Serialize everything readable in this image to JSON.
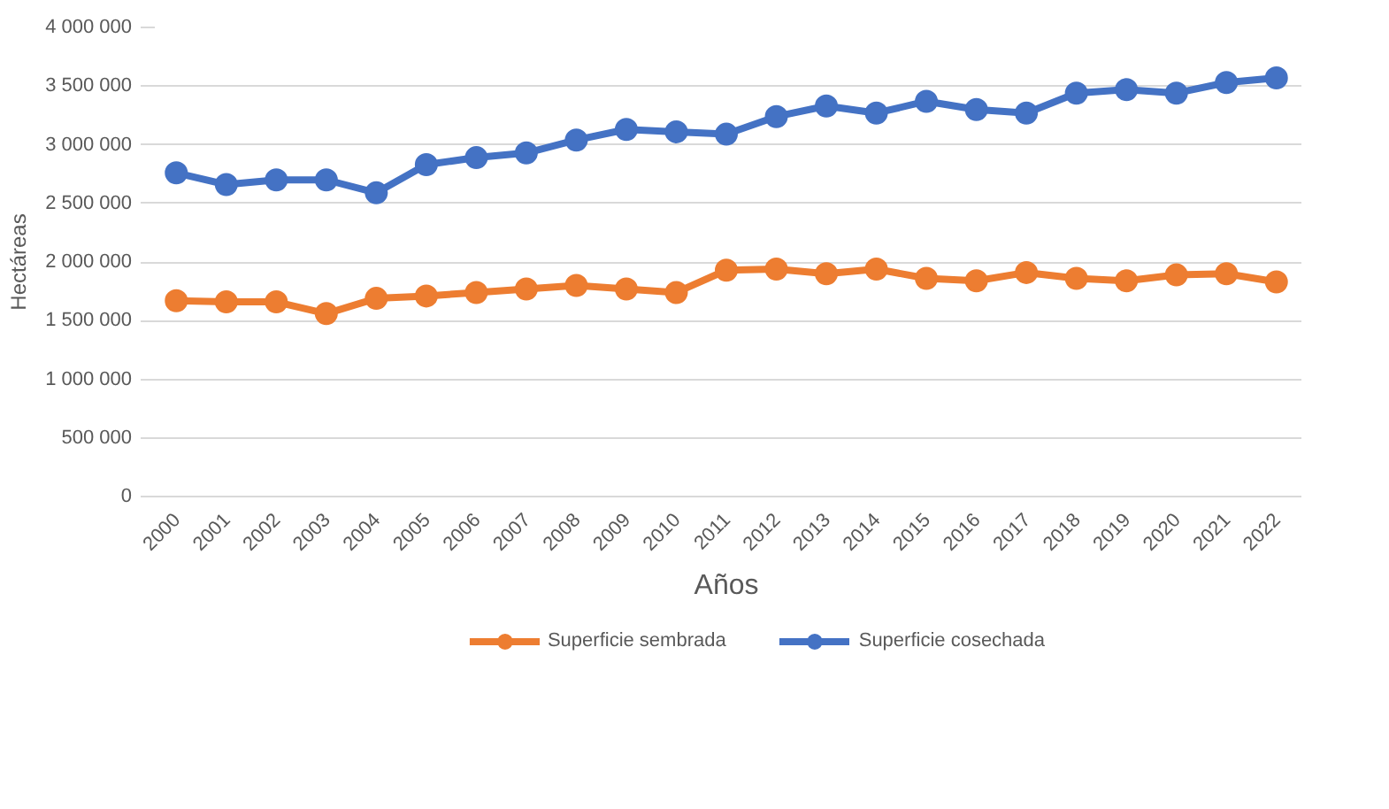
{
  "chart_data": {
    "type": "line",
    "xlabel": "Años",
    "ylabel": "Hectáreas",
    "categories": [
      "2000",
      "2001",
      "2002",
      "2003",
      "2004",
      "2005",
      "2006",
      "2007",
      "2008",
      "2009",
      "2010",
      "2011",
      "2012",
      "2013",
      "2014",
      "2015",
      "2016",
      "2017",
      "2018",
      "2019",
      "2020",
      "2021",
      "2022"
    ],
    "series": [
      {
        "name": "Superficie sembrada",
        "color": "#ed7d31",
        "values": [
          1670000,
          1660000,
          1660000,
          1560000,
          1690000,
          1710000,
          1740000,
          1770000,
          1800000,
          1770000,
          1740000,
          1930000,
          1940000,
          1900000,
          1940000,
          1860000,
          1840000,
          1910000,
          1860000,
          1840000,
          1890000,
          1900000,
          1830000
        ]
      },
      {
        "name": "Superficie cosechada",
        "color": "#4472c4",
        "values": [
          2760000,
          2660000,
          2700000,
          2700000,
          2590000,
          2830000,
          2890000,
          2930000,
          3040000,
          3130000,
          3110000,
          3090000,
          3240000,
          3330000,
          3270000,
          3370000,
          3300000,
          3270000,
          3440000,
          3470000,
          3440000,
          3530000,
          3570000
        ]
      }
    ],
    "ylim": [
      0,
      4000000
    ],
    "yticks": [
      0,
      {
        "value": 500000,
        "label": "500 000"
      },
      {
        "value": 1000000,
        "label": "1 000 000"
      },
      {
        "value": 1500000,
        "label": "1 500 000"
      },
      {
        "value": 2000000,
        "label": "2 000 000"
      },
      {
        "value": 2500000,
        "label": "2 500 000"
      },
      {
        "value": 3000000,
        "label": "3 000 000"
      },
      {
        "value": 3500000,
        "label": "3 500 000"
      },
      {
        "value": 4000000,
        "label": "4 000 000"
      }
    ],
    "grid": "y",
    "legend": "bottom",
    "marker": "circle",
    "line_style": "solid"
  }
}
